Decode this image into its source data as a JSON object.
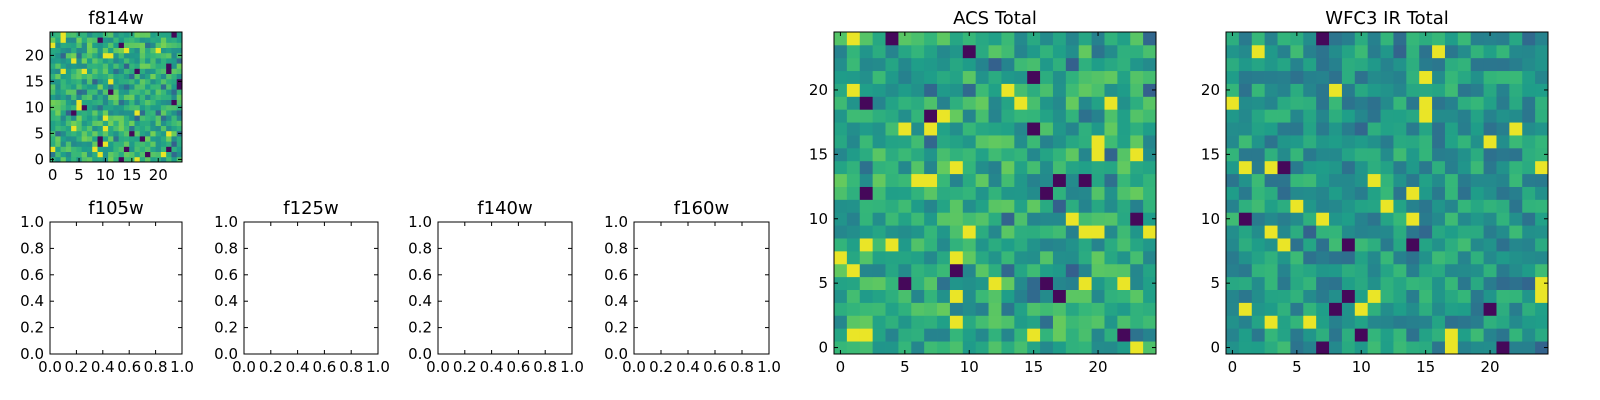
{
  "chart_data": [
    {
      "id": "f814w",
      "type": "heatmap",
      "title": "f814w",
      "size": 25,
      "seed": 814,
      "bias": 0.08,
      "xlim": [
        -0.5,
        24.5
      ],
      "ylim": [
        -0.5,
        24.5
      ],
      "xticks": [
        0,
        5,
        10,
        15,
        20
      ],
      "yticks": [
        0,
        5,
        10,
        15,
        20
      ],
      "xtick_labels": [
        "0",
        "5",
        "10",
        "15",
        "20"
      ],
      "ytick_labels": [
        "0",
        "5",
        "10",
        "15",
        "20"
      ],
      "colormap": "viridis",
      "grid": false
    },
    {
      "id": "f105w",
      "type": "heatmap",
      "title": "f105w",
      "empty": true,
      "xlim": [
        0,
        1
      ],
      "ylim": [
        0,
        1
      ],
      "xticks": [
        0,
        0.2,
        0.4,
        0.6,
        0.8,
        1.0
      ],
      "yticks": [
        0,
        0.2,
        0.4,
        0.6,
        0.8,
        1.0
      ],
      "xtick_labels": [
        "0.0",
        "0.2",
        "0.4",
        "0.6",
        "0.8",
        "1.0"
      ],
      "ytick_labels": [
        "0.0",
        "0.2",
        "0.4",
        "0.6",
        "0.8",
        "1.0"
      ]
    },
    {
      "id": "f125w",
      "type": "heatmap",
      "title": "f125w",
      "empty": true,
      "xlim": [
        0,
        1
      ],
      "ylim": [
        0,
        1
      ],
      "xticks": [
        0,
        0.2,
        0.4,
        0.6,
        0.8,
        1.0
      ],
      "yticks": [
        0,
        0.2,
        0.4,
        0.6,
        0.8,
        1.0
      ],
      "xtick_labels": [
        "0.0",
        "0.2",
        "0.4",
        "0.6",
        "0.8",
        "1.0"
      ],
      "ytick_labels": [
        "0.0",
        "0.2",
        "0.4",
        "0.6",
        "0.8",
        "1.0"
      ]
    },
    {
      "id": "f140w",
      "type": "heatmap",
      "title": "f140w",
      "empty": true,
      "xlim": [
        0,
        1
      ],
      "ylim": [
        0,
        1
      ],
      "xticks": [
        0,
        0.2,
        0.4,
        0.6,
        0.8,
        1.0
      ],
      "yticks": [
        0,
        0.2,
        0.4,
        0.6,
        0.8,
        1.0
      ],
      "xtick_labels": [
        "0.0",
        "0.2",
        "0.4",
        "0.6",
        "0.8",
        "1.0"
      ],
      "ytick_labels": [
        "0.0",
        "0.2",
        "0.4",
        "0.6",
        "0.8",
        "1.0"
      ]
    },
    {
      "id": "f160w",
      "type": "heatmap",
      "title": "f160w",
      "empty": true,
      "xlim": [
        0,
        1
      ],
      "ylim": [
        0,
        1
      ],
      "xticks": [
        0,
        0.2,
        0.4,
        0.6,
        0.8,
        1.0
      ],
      "yticks": [
        0,
        0.2,
        0.4,
        0.6,
        0.8,
        1.0
      ],
      "xtick_labels": [
        "0.0",
        "0.2",
        "0.4",
        "0.6",
        "0.8",
        "1.0"
      ],
      "ytick_labels": [
        "0.0",
        "0.2",
        "0.4",
        "0.6",
        "0.8",
        "1.0"
      ]
    },
    {
      "id": "acs-total",
      "type": "heatmap",
      "title": "ACS Total",
      "size": 25,
      "seed": 1234,
      "bias": 0.05,
      "xlim": [
        -0.5,
        24.5
      ],
      "ylim": [
        -0.5,
        24.5
      ],
      "xticks": [
        0,
        5,
        10,
        15,
        20
      ],
      "yticks": [
        0,
        5,
        10,
        15,
        20
      ],
      "xtick_labels": [
        "0",
        "5",
        "10",
        "15",
        "20"
      ],
      "ytick_labels": [
        "0",
        "5",
        "10",
        "15",
        "20"
      ],
      "colormap": "viridis",
      "grid": false
    },
    {
      "id": "wfc3-ir-total",
      "type": "heatmap",
      "title": "WFC3 IR Total",
      "size": 25,
      "seed": 5678,
      "bias": -0.02,
      "xlim": [
        -0.5,
        24.5
      ],
      "ylim": [
        -0.5,
        24.5
      ],
      "xticks": [
        0,
        5,
        10,
        15,
        20
      ],
      "yticks": [
        0,
        5,
        10,
        15,
        20
      ],
      "xtick_labels": [
        "0",
        "5",
        "10",
        "15",
        "20"
      ],
      "ytick_labels": [
        "0",
        "5",
        "10",
        "15",
        "20"
      ],
      "colormap": "viridis",
      "grid": false
    }
  ]
}
